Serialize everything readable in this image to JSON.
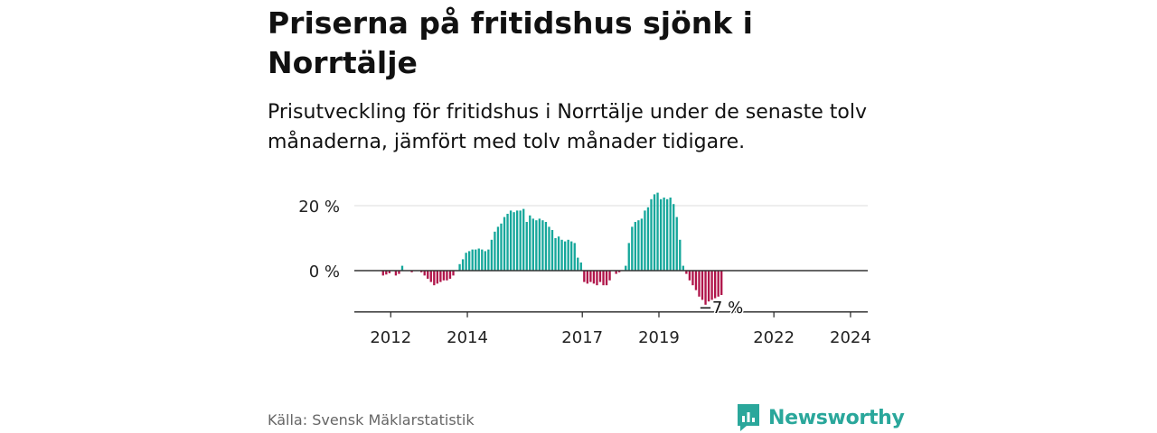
{
  "header": {
    "title": "Priserna på fritidshus sjönk i Norrtälje",
    "subtitle": "Prisutveckling för fritidshus i Norrtälje under de senaste tolv månaderna, jämfört med tolv månader tidigare."
  },
  "footer": {
    "source": "Källa: Svensk Mäklarstatistik",
    "brand": "Newsworthy"
  },
  "colors": {
    "positive": "#16a79b",
    "negative": "#b0154a",
    "brand": "#2aa79b"
  },
  "chart_data": {
    "type": "bar",
    "title": "",
    "xlabel": "",
    "ylabel": "",
    "ylim": [
      -13,
      25
    ],
    "yticks": [
      {
        "value": 20,
        "label": "20 %"
      },
      {
        "value": 0,
        "label": "0 %"
      }
    ],
    "xticks": [
      {
        "value": 2012,
        "label": "2012"
      },
      {
        "value": 2014,
        "label": "2014"
      },
      {
        "value": 2017,
        "label": "2017"
      },
      {
        "value": 2019,
        "label": "2019"
      },
      {
        "value": 2022,
        "label": "2022"
      },
      {
        "value": 2024,
        "label": "2024"
      }
    ],
    "x_start": 2011.8,
    "x_step": 0.08333,
    "annotation": {
      "label": "−7 %",
      "value": -7
    },
    "values": [
      -1.5,
      -1.2,
      -0.8,
      0,
      -1.5,
      -1.0,
      1.5,
      0,
      0,
      -0.5,
      0,
      0,
      -0.5,
      -1.5,
      -2.5,
      -3.5,
      -4.5,
      -4.0,
      -3.5,
      -3.0,
      -3.0,
      -2.5,
      -1.5,
      0,
      2.0,
      3.5,
      5.5,
      6.0,
      6.5,
      6.5,
      6.8,
      6.5,
      6.0,
      6.5,
      9.5,
      12.0,
      13.5,
      14.5,
      16.5,
      17.5,
      18.5,
      18.0,
      18.5,
      18.5,
      19.0,
      15.0,
      17.0,
      16.0,
      15.5,
      16.0,
      15.5,
      15.0,
      13.5,
      12.5,
      10.0,
      10.5,
      9.5,
      9.0,
      9.5,
      9.0,
      8.5,
      4.0,
      2.5,
      -3.5,
      -4.0,
      -3.5,
      -4.0,
      -4.5,
      -3.5,
      -4.5,
      -4.5,
      -3.0,
      0,
      -1.0,
      -0.5,
      0,
      1.5,
      8.5,
      13.5,
      15.0,
      15.5,
      16.0,
      18.5,
      19.5,
      22.0,
      23.5,
      24.0,
      22.0,
      22.5,
      22.0,
      22.5,
      20.5,
      16.5,
      9.5,
      1.5,
      -1.0,
      -3.0,
      -4.5,
      -6.0,
      -8.0,
      -9.0,
      -10.5,
      -9.5,
      -9.0,
      -8.5,
      -8.0,
      -7.5
    ]
  }
}
